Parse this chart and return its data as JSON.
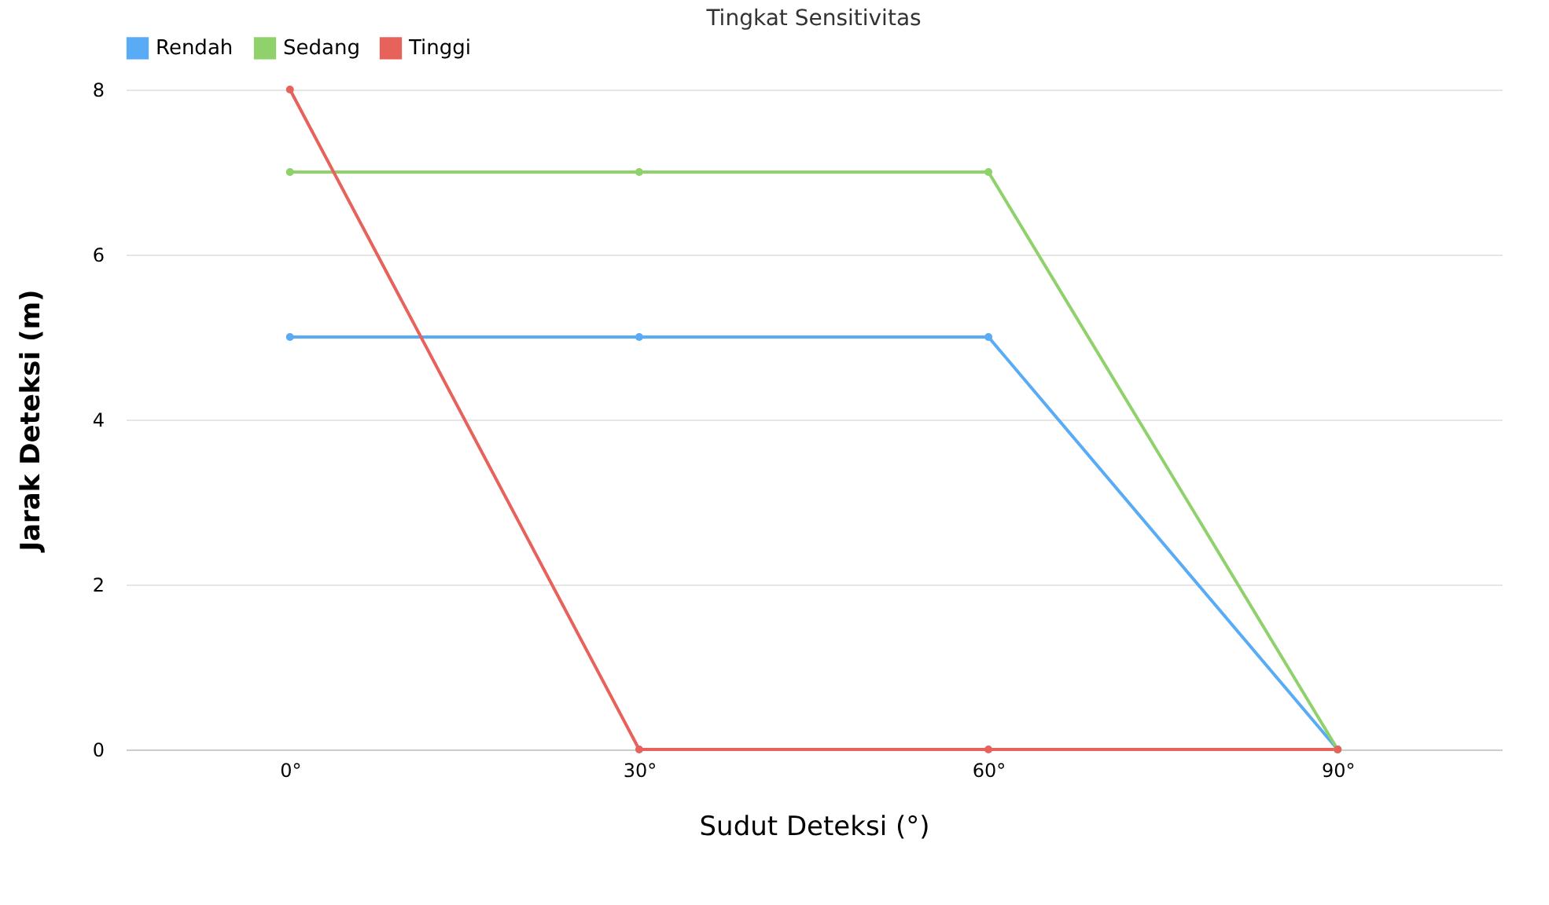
{
  "chart_data": {
    "type": "line",
    "title": "Tingkat Sensitivitas",
    "xlabel": "Sudut Deteksi (°)",
    "ylabel": "Jarak Deteksi (m)",
    "categories": [
      "0°",
      "30°",
      "60°",
      "90°"
    ],
    "series": [
      {
        "name": "Rendah",
        "color": "#5aabf5",
        "values": [
          5,
          5,
          5,
          0
        ]
      },
      {
        "name": "Sedang",
        "color": "#8fd16a",
        "values": [
          7,
          7,
          7,
          0
        ]
      },
      {
        "name": "Tinggi",
        "color": "#e8625c",
        "values": [
          8,
          0,
          0,
          0
        ]
      }
    ],
    "ylim": [
      0,
      8
    ],
    "yticks": [
      0,
      2,
      4,
      6,
      8
    ],
    "grid": "y",
    "legend": "top",
    "marker": "circle",
    "line_style": "solid"
  }
}
